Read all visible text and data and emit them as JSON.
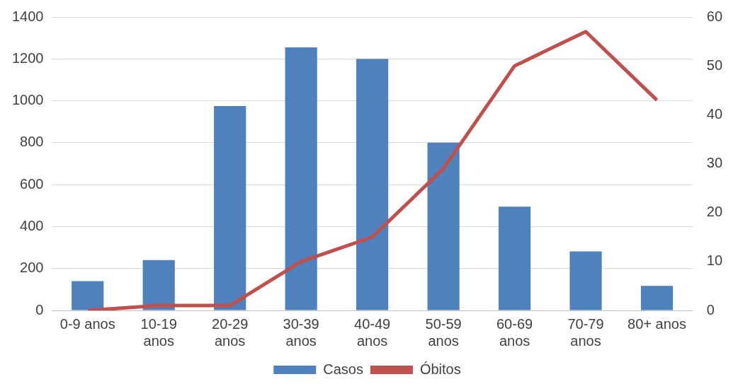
{
  "chart_data": {
    "type": "bar",
    "categories": [
      "0-9 anos",
      "10-19 anos",
      "20-29 anos",
      "30-39 anos",
      "40-49 anos",
      "50-59 anos",
      "60-69 anos",
      "70-79 anos",
      "80+ anos"
    ],
    "series": [
      {
        "name": "Casos",
        "color": "#4f81bd",
        "values": [
          140,
          240,
          975,
          1255,
          1200,
          800,
          495,
          282,
          117
        ]
      },
      {
        "name": "Óbitos",
        "type": "line",
        "axis": "y2",
        "color": "#c0504d",
        "values": [
          0,
          1,
          1,
          10,
          15,
          29,
          50,
          57,
          43
        ]
      }
    ],
    "ylim": [
      0,
      1400
    ],
    "yticks": [
      0,
      200,
      400,
      600,
      800,
      1000,
      1200,
      1400
    ],
    "y2lim": [
      0,
      60
    ],
    "y2ticks": [
      0,
      10,
      20,
      30,
      40,
      50,
      60
    ],
    "grid": "y",
    "legend": "bottom",
    "marker": "none"
  }
}
